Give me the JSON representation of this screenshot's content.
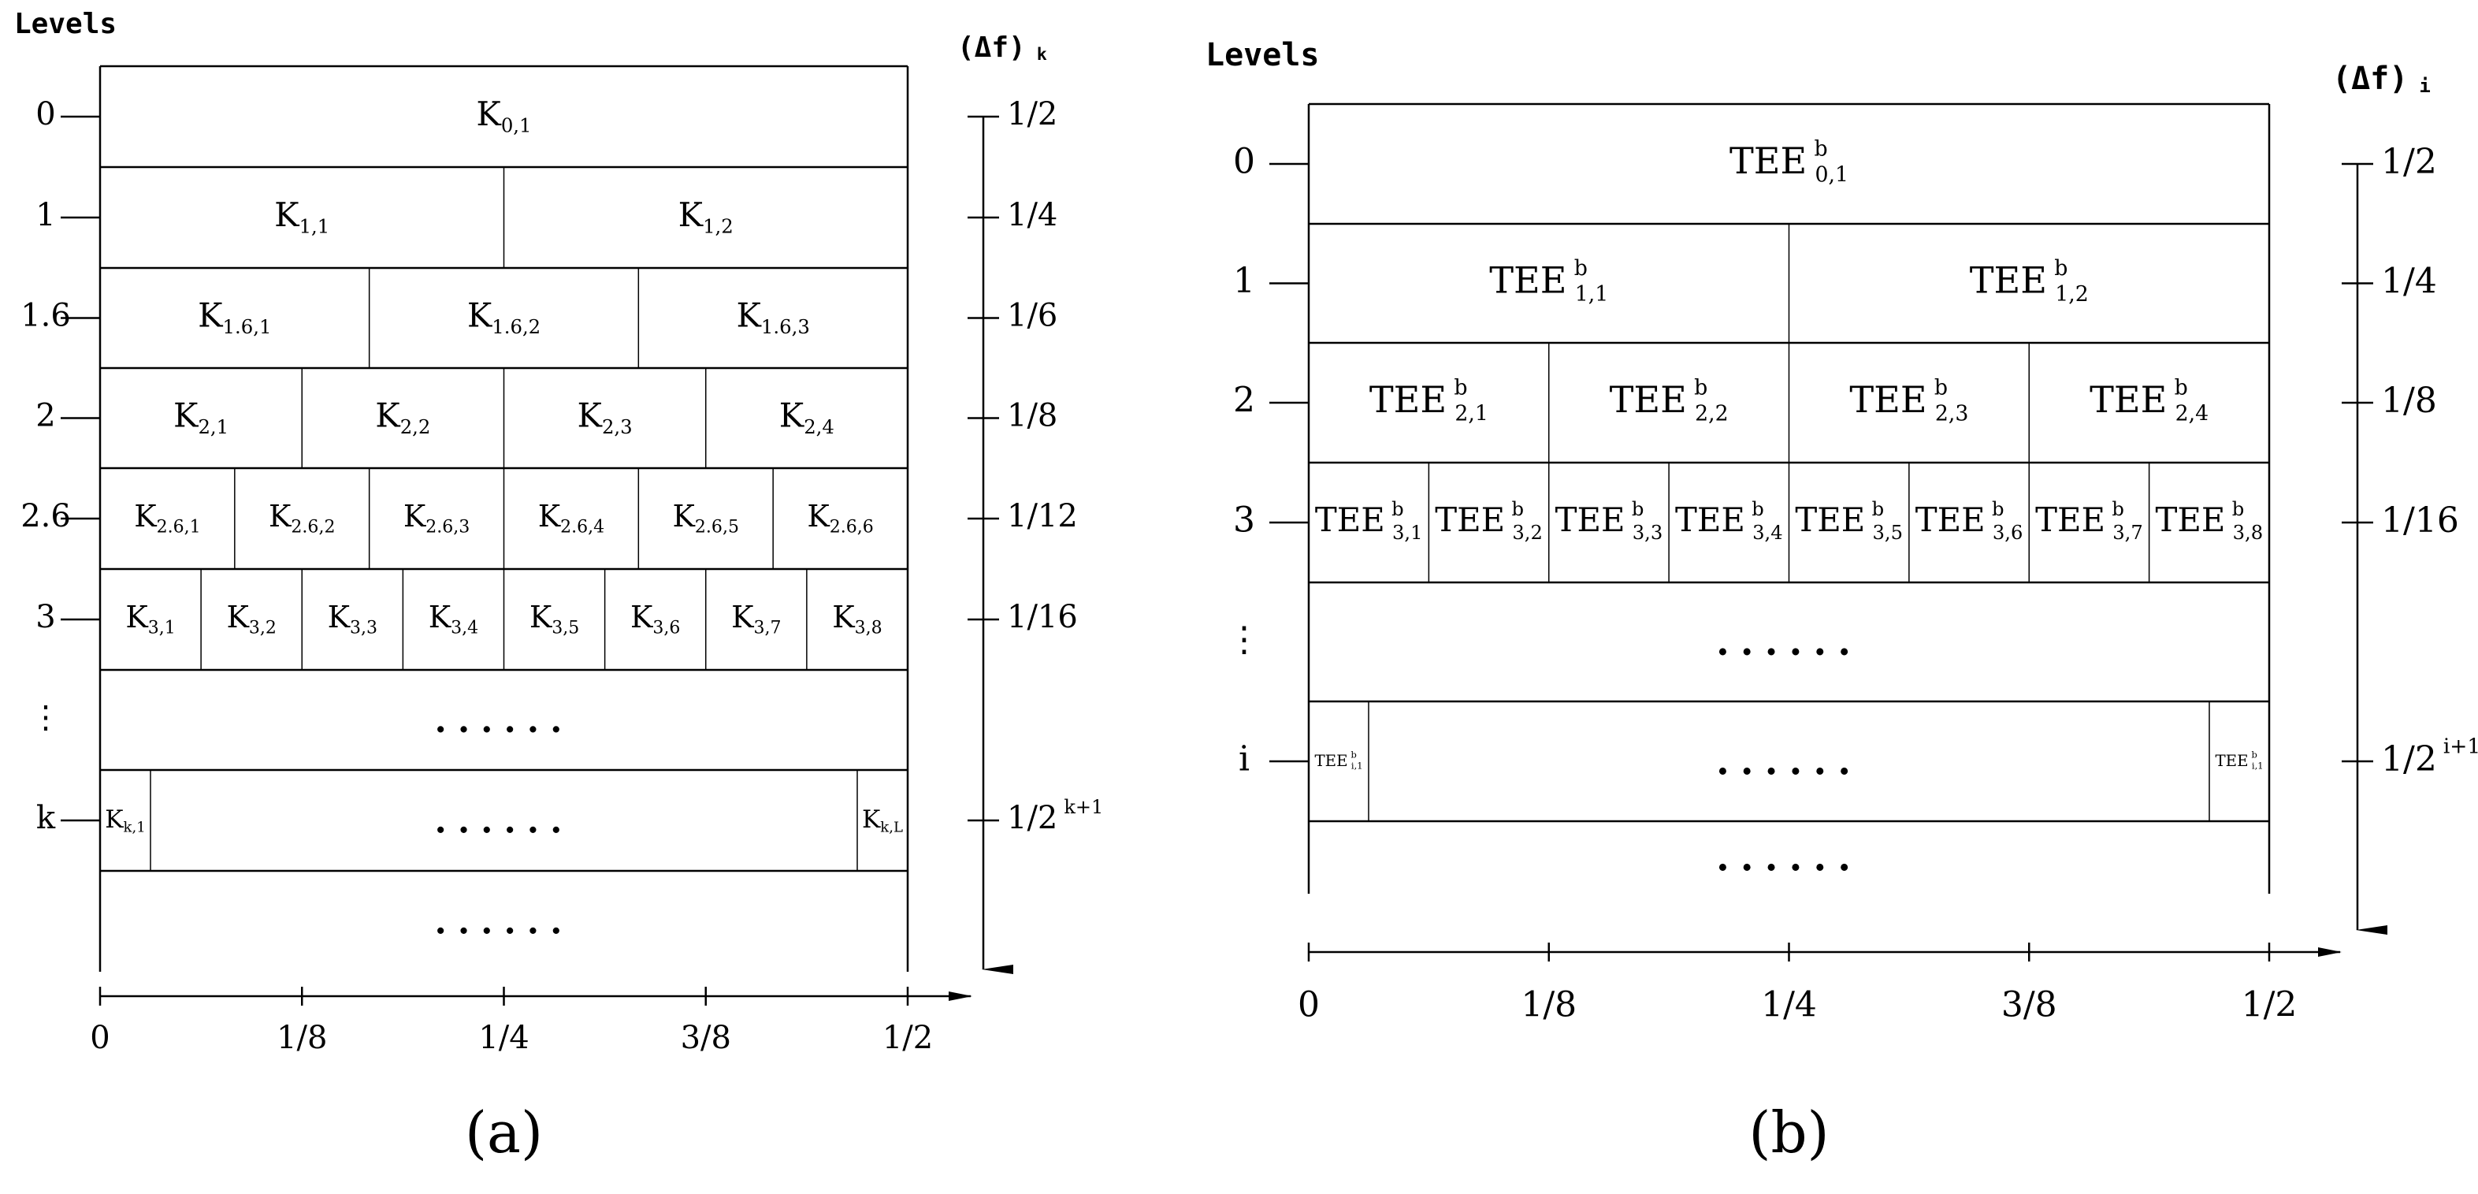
{
  "panel_a": {
    "caption": "(a)",
    "levels_title": "Levels",
    "df_title": "(Δf)",
    "df_sub": "k",
    "x_ticks": [
      "0",
      "1/8",
      "1/4",
      "3/8",
      "1/2"
    ],
    "dots": "......",
    "rows": [
      {
        "level": "0",
        "df": "1/2",
        "cells": [
          [
            "K",
            "0,1"
          ]
        ]
      },
      {
        "level": "1",
        "df": "1/4",
        "cells": [
          [
            "K",
            "1,1"
          ],
          [
            "K",
            "1,2"
          ]
        ]
      },
      {
        "level": "1.6",
        "df": "1/6",
        "cells": [
          [
            "K",
            "1.6,1"
          ],
          [
            "K",
            "1.6,2"
          ],
          [
            "K",
            "1.6,3"
          ]
        ]
      },
      {
        "level": "2",
        "df": "1/8",
        "cells": [
          [
            "K",
            "2,1"
          ],
          [
            "K",
            "2,2"
          ],
          [
            "K",
            "2,3"
          ],
          [
            "K",
            "2,4"
          ]
        ]
      },
      {
        "level": "2.6",
        "df": "1/12",
        "cells": [
          [
            "K",
            "2.6,1"
          ],
          [
            "K",
            "2.6,2"
          ],
          [
            "K",
            "2.6,3"
          ],
          [
            "K",
            "2.6,4"
          ],
          [
            "K",
            "2.6,5"
          ],
          [
            "K",
            "2.6,6"
          ]
        ]
      },
      {
        "level": "3",
        "df": "1/16",
        "cells": [
          [
            "K",
            "3,1"
          ],
          [
            "K",
            "3,2"
          ],
          [
            "K",
            "3,3"
          ],
          [
            "K",
            "3,4"
          ],
          [
            "K",
            "3,5"
          ],
          [
            "K",
            "3,6"
          ],
          [
            "K",
            "3,7"
          ],
          [
            "K",
            "3,8"
          ]
        ]
      },
      {
        "level": "⋮",
        "df": "",
        "cells": []
      },
      {
        "level": "k",
        "df": "1/2",
        "df_sup": "k+1",
        "cells": [
          [
            "K",
            "k,1"
          ],
          [
            "K",
            "k,L"
          ]
        ]
      },
      {
        "level": "",
        "df": "",
        "cells": []
      }
    ]
  },
  "panel_b": {
    "caption": "(b)",
    "levels_title": "Levels",
    "df_title": "(Δf)",
    "df_sub": "i",
    "x_ticks": [
      "0",
      "1/8",
      "1/4",
      "3/8",
      "1/2"
    ],
    "dots": "......",
    "sup": "b",
    "rows": [
      {
        "level": "0",
        "df": "1/2",
        "cells": [
          [
            "TEE",
            "0,1"
          ]
        ]
      },
      {
        "level": "1",
        "df": "1/4",
        "cells": [
          [
            "TEE",
            "1,1"
          ],
          [
            "TEE",
            "1,2"
          ]
        ]
      },
      {
        "level": "2",
        "df": "1/8",
        "cells": [
          [
            "TEE",
            "2,1"
          ],
          [
            "TEE",
            "2,2"
          ],
          [
            "TEE",
            "2,3"
          ],
          [
            "TEE",
            "2,4"
          ]
        ]
      },
      {
        "level": "3",
        "df": "1/16",
        "cells": [
          [
            "TEE",
            "3,1"
          ],
          [
            "TEE",
            "3,2"
          ],
          [
            "TEE",
            "3,3"
          ],
          [
            "TEE",
            "3,4"
          ],
          [
            "TEE",
            "3,5"
          ],
          [
            "TEE",
            "3,6"
          ],
          [
            "TEE",
            "3,7"
          ],
          [
            "TEE",
            "3,8"
          ]
        ]
      },
      {
        "level": "⋮",
        "df": "",
        "cells": []
      },
      {
        "level": "i",
        "df": "1/2",
        "df_sup": "i+1",
        "cells": [
          [
            "TEE",
            "i,1"
          ],
          [
            "TEE",
            "i,1"
          ]
        ]
      },
      {
        "level": "",
        "df": "",
        "cells": []
      }
    ]
  }
}
